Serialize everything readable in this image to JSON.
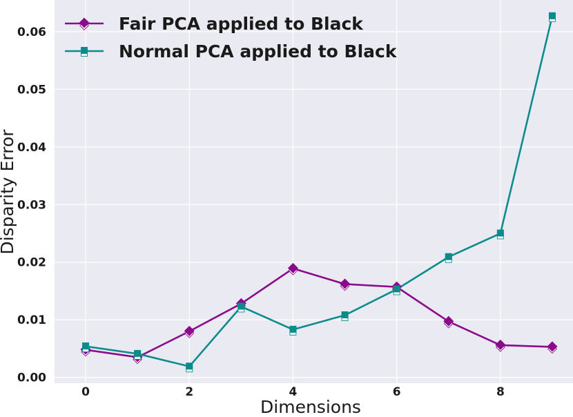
{
  "chart_data": {
    "type": "line",
    "xlabel": "Dimensions",
    "ylabel": "Disparity Error",
    "xlim": [
      -0.6,
      9.4
    ],
    "ylim": [
      -0.001,
      0.0655
    ],
    "x_ticks": [
      0,
      2,
      4,
      6,
      8
    ],
    "x_tick_labels": [
      "0",
      "2",
      "4",
      "6",
      "8"
    ],
    "y_ticks": [
      0.0,
      0.01,
      0.02,
      0.03,
      0.04,
      0.05,
      0.06
    ],
    "y_tick_labels": [
      "0.00",
      "0.01",
      "0.02",
      "0.03",
      "0.04",
      "0.05",
      "0.06"
    ],
    "grid": true,
    "legend_position": "upper-left",
    "x": [
      0,
      1,
      2,
      3,
      4,
      5,
      6,
      7,
      8,
      9
    ],
    "series": [
      {
        "name": "Fair PCA applied to Black",
        "color": "#8b0a8b",
        "marker": "diamond",
        "values": [
          0.0048,
          0.0035,
          0.008,
          0.0128,
          0.0189,
          0.0162,
          0.0157,
          0.0097,
          0.0056,
          0.0053
        ]
      },
      {
        "name": "Normal PCA applied to Black",
        "color": "#0b8b8b",
        "marker": "square",
        "values": [
          0.0054,
          0.0041,
          0.0019,
          0.0123,
          0.0083,
          0.0108,
          0.0153,
          0.0209,
          0.025,
          0.0627
        ]
      }
    ]
  }
}
